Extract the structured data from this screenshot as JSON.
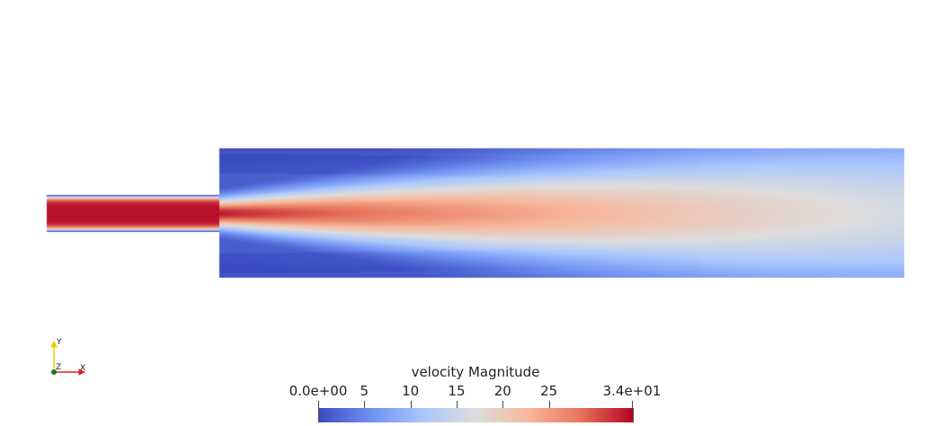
{
  "colormap": {
    "name": "Cool to Warm",
    "stops": [
      "#3b4cc0",
      "#6f91f2",
      "#aac7fd",
      "#dddddd",
      "#f7b89c",
      "#e7745b",
      "#b40426"
    ]
  },
  "axes_triad": {
    "x_label": "X",
    "y_label": "Y",
    "z_label": "Z",
    "x_color": "#e02020",
    "y_color": "#e8d000",
    "z_color": "#1a7a1a"
  },
  "colorbar": {
    "title": "velocity Magnitude",
    "range": [
      0,
      34
    ],
    "ticks": [
      {
        "label": "0.0e+00",
        "value": 0
      },
      {
        "label": "5",
        "value": 5
      },
      {
        "label": "10",
        "value": 10
      },
      {
        "label": "15",
        "value": 15
      },
      {
        "label": "20",
        "value": 20
      },
      {
        "label": "25",
        "value": 25
      },
      {
        "label": "3.4e+01",
        "value": 34
      }
    ]
  }
}
